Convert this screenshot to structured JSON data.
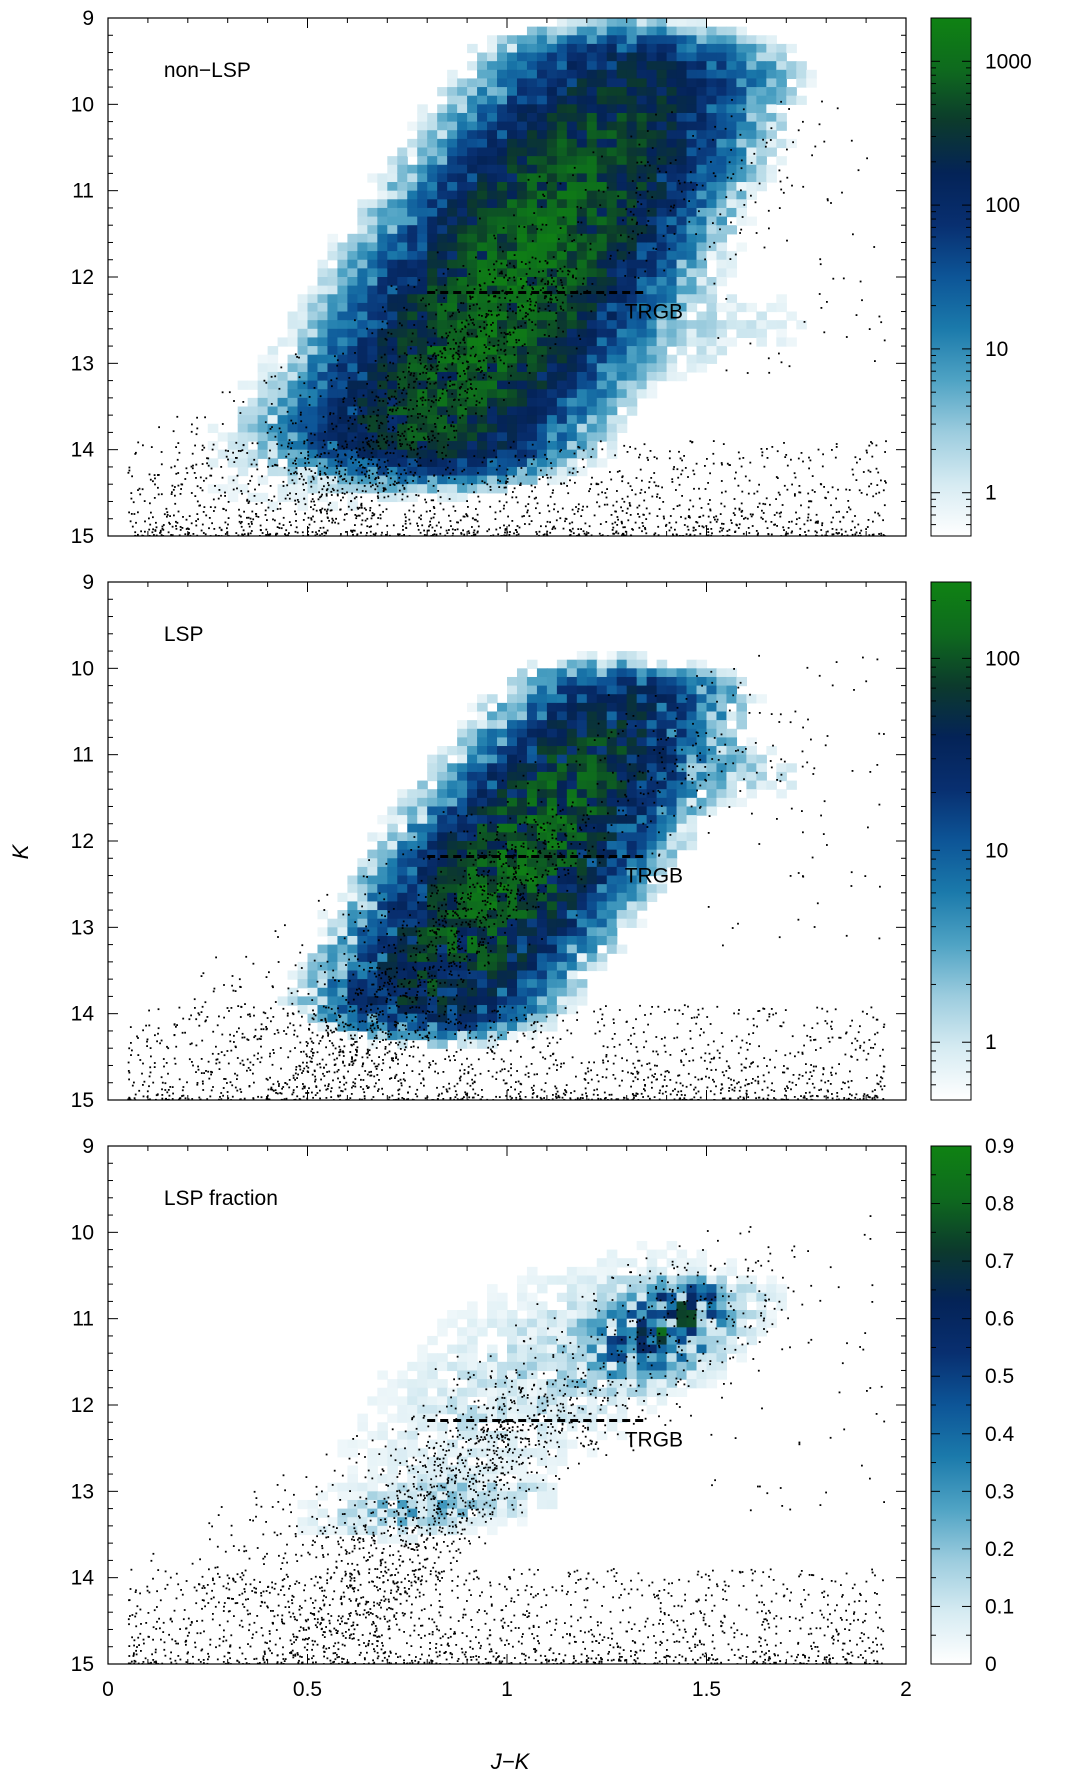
{
  "figure": {
    "xlabel": "J−K",
    "ylabel": "K"
  },
  "chart_data": [
    {
      "type": "heatmap",
      "label": "non−LSP",
      "xlabel": "J−K",
      "ylabel": "K",
      "xlim": [
        0,
        2
      ],
      "ylim": [
        15,
        9
      ],
      "y_inverted": true,
      "x_ticks": [
        0,
        0.5,
        1,
        1.5,
        2
      ],
      "y_ticks": [
        9,
        10,
        11,
        12,
        13,
        14,
        15
      ],
      "trgb": {
        "label": "TRGB",
        "K": 12.18,
        "x_range": [
          0.8,
          1.35
        ]
      },
      "colorbar": {
        "scale": "log",
        "min": 0.5,
        "max": 2000,
        "ticks": [
          1,
          10,
          100,
          1000
        ],
        "tick_labels": [
          "1",
          "10",
          "100",
          "1000"
        ]
      },
      "density_model": [
        {
          "x0": 0.8,
          "y0": 13.85,
          "x1": 1.32,
          "y1": 9.6,
          "width": 0.13,
          "peak": 2000,
          "peak_pos": 0.42
        },
        {
          "x0": 0.05,
          "y0": 13.3,
          "x1": 0.95,
          "y1": 13.6,
          "width": 0.3,
          "peak": 4,
          "peak_pos": 0.9
        },
        {
          "x0": 1.05,
          "y0": 13.0,
          "x1": 1.75,
          "y1": 12.0,
          "width": 0.22,
          "peak": 3,
          "peak_pos": 0.3
        }
      ]
    },
    {
      "type": "heatmap",
      "label": "LSP",
      "xlabel": "J−K",
      "ylabel": "K",
      "xlim": [
        0,
        2
      ],
      "ylim": [
        15,
        9
      ],
      "y_inverted": true,
      "x_ticks": [
        0,
        0.5,
        1,
        1.5,
        2
      ],
      "y_ticks": [
        9,
        10,
        11,
        12,
        13,
        14,
        15
      ],
      "trgb": {
        "label": "TRGB",
        "K": 12.18,
        "x_range": [
          0.8,
          1.35
        ]
      },
      "colorbar": {
        "scale": "log",
        "min": 0.5,
        "max": 250,
        "ticks": [
          1,
          10,
          100
        ],
        "tick_labels": [
          "1",
          "10",
          "100"
        ]
      },
      "density_model": [
        {
          "x0": 0.8,
          "y0": 13.9,
          "x1": 1.3,
          "y1": 10.3,
          "width": 0.12,
          "peak": 250,
          "peak_pos": 0.45
        },
        {
          "x0": 1.25,
          "y0": 11.2,
          "x1": 1.7,
          "y1": 10.9,
          "width": 0.16,
          "peak": 4,
          "peak_pos": 0.3
        }
      ]
    },
    {
      "type": "heatmap",
      "label": "LSP fraction",
      "xlabel": "J−K",
      "ylabel": "K",
      "xlim": [
        0,
        2
      ],
      "ylim": [
        15,
        9
      ],
      "y_inverted": true,
      "x_ticks": [
        0,
        0.5,
        1,
        1.5,
        2
      ],
      "y_ticks": [
        9,
        10,
        11,
        12,
        13,
        14,
        15
      ],
      "trgb": {
        "label": "TRGB",
        "K": 12.18,
        "x_range": [
          0.8,
          1.35
        ]
      },
      "colorbar": {
        "scale": "linear",
        "min": 0,
        "max": 0.9,
        "ticks": [
          0,
          0.1,
          0.2,
          0.3,
          0.4,
          0.5,
          0.6,
          0.7,
          0.8,
          0.9
        ],
        "tick_labels": [
          "0",
          "0.1",
          "0.2",
          "0.3",
          "0.4",
          "0.5",
          "0.6",
          "0.7",
          "0.8",
          "0.9"
        ]
      },
      "density_model": [
        {
          "x0": 1.3,
          "y0": 11.8,
          "x1": 1.48,
          "y1": 10.6,
          "width": 0.1,
          "peak": 0.8,
          "peak_pos": 0.6
        },
        {
          "x0": 0.6,
          "y0": 13.5,
          "x1": 1.0,
          "y1": 12.9,
          "width": 0.12,
          "peak": 0.35,
          "peak_pos": 0.5
        },
        {
          "x0": 0.8,
          "y0": 13.0,
          "x1": 1.4,
          "y1": 10.2,
          "width": 0.22,
          "peak": 0.2,
          "peak_pos": 0.5
        }
      ]
    }
  ],
  "colors": {
    "cmap": [
      "#ffffff",
      "#d6ebf2",
      "#9cccde",
      "#4fa3c4",
      "#1b7aab",
      "#0d5597",
      "#082f70",
      "#042357",
      "#0c3a2c",
      "#0e6a1e",
      "#0f8213"
    ],
    "points": "#000000",
    "trgb_line": "#000000"
  }
}
